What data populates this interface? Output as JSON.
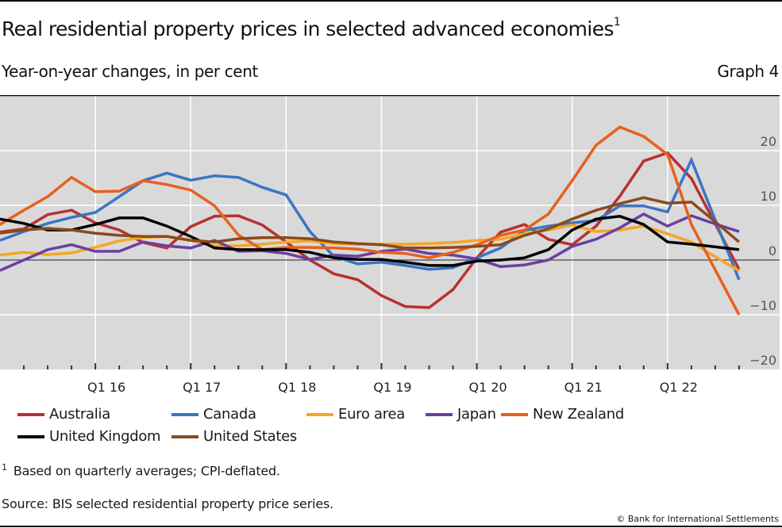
{
  "header": {
    "title": "Real residential property prices in selected advanced economies",
    "title_footnote_marker": "1",
    "subtitle": "Year-on-year changes, in per cent",
    "graph_number": "Graph 4"
  },
  "footer": {
    "footnote_marker": "1",
    "footnote": "Based on quarterly averages; CPI-deflated.",
    "source": "Source: BIS selected residential property price series.",
    "copyright": "© Bank for International Settlements"
  },
  "chart_data": {
    "type": "line",
    "title": "Real residential property prices in selected advanced economies",
    "subtitle": "Year-on-year changes, in per cent",
    "xlabel": "",
    "ylabel": "",
    "x": [
      "Q1 15",
      "Q2 15",
      "Q3 15",
      "Q4 15",
      "Q1 16",
      "Q2 16",
      "Q3 16",
      "Q4 16",
      "Q1 17",
      "Q2 17",
      "Q3 17",
      "Q4 17",
      "Q1 18",
      "Q2 18",
      "Q3 18",
      "Q4 18",
      "Q1 19",
      "Q2 19",
      "Q3 19",
      "Q4 19",
      "Q1 20",
      "Q2 20",
      "Q3 20",
      "Q4 20",
      "Q1 21",
      "Q2 21",
      "Q3 21",
      "Q4 21",
      "Q1 22",
      "Q2 22",
      "Q3 22",
      "Q4 22"
    ],
    "x_tick_labels": [
      "Q1 16",
      "Q1 17",
      "Q1 18",
      "Q1 19",
      "Q1 20",
      "Q1 21",
      "Q1 22"
    ],
    "y_ticks": [
      20,
      10,
      0,
      -10,
      -20
    ],
    "y_tick_labels": [
      "20",
      "10",
      "0",
      "−10",
      "−20"
    ],
    "ylim": [
      -20,
      29
    ],
    "y_axis_position": "right",
    "grid": true,
    "background": "#d9d9d9",
    "legend_position": "bottom",
    "series": [
      {
        "name": "Australia",
        "color": "#b8312f",
        "values": [
          5.1,
          5.7,
          8.3,
          9.1,
          6.8,
          5.5,
          3.2,
          2.2,
          6.1,
          8.0,
          8.1,
          6.4,
          3.3,
          0.0,
          -2.5,
          -3.6,
          -6.5,
          -8.5,
          -8.7,
          -5.4,
          0.4,
          5.1,
          6.5,
          3.8,
          2.8,
          6.2,
          11.7,
          18.1,
          19.6,
          14.9,
          6.6,
          -1.7
        ]
      },
      {
        "name": "Canada",
        "color": "#3a75c4",
        "values": [
          3.6,
          5.2,
          6.7,
          7.8,
          8.7,
          11.6,
          14.5,
          15.9,
          14.6,
          15.4,
          15.1,
          13.3,
          11.9,
          5.2,
          0.7,
          -0.7,
          -0.4,
          -1.0,
          -1.7,
          -1.4,
          0.4,
          2.2,
          5.4,
          6.2,
          6.8,
          7.2,
          9.9,
          9.9,
          8.8,
          18.3,
          7.3,
          -3.6
        ]
      },
      {
        "name": "Euro area",
        "color": "#f5a623",
        "values": [
          0.9,
          1.4,
          1.0,
          1.3,
          2.3,
          3.5,
          4.1,
          4.3,
          3.6,
          2.6,
          2.6,
          2.9,
          3.3,
          3.5,
          3.0,
          2.9,
          2.9,
          2.9,
          3.0,
          3.2,
          3.6,
          3.8,
          4.8,
          5.5,
          6.4,
          5.2,
          5.5,
          6.2,
          4.8,
          3.3,
          0.6,
          -2.0
        ]
      },
      {
        "name": "Japan",
        "color": "#6b3fa0",
        "values": [
          -1.9,
          0.0,
          1.9,
          2.8,
          1.6,
          1.6,
          3.3,
          2.6,
          2.2,
          3.6,
          1.6,
          1.7,
          1.2,
          0.1,
          0.9,
          0.7,
          1.6,
          2.0,
          1.2,
          0.9,
          0.2,
          -1.2,
          -0.9,
          0.0,
          2.5,
          3.8,
          5.9,
          8.4,
          6.2,
          8.1,
          6.6,
          5.2
        ]
      },
      {
        "name": "New Zealand",
        "color": "#e8601c",
        "values": [
          6.5,
          9.1,
          11.6,
          15.1,
          12.5,
          12.6,
          14.5,
          13.8,
          12.8,
          9.9,
          4.6,
          1.9,
          2.3,
          2.3,
          2.2,
          2.0,
          1.4,
          1.2,
          0.4,
          1.4,
          2.8,
          4.5,
          5.5,
          8.4,
          14.5,
          21.0,
          24.3,
          22.6,
          19.3,
          6.5,
          -1.8,
          -10.0
        ]
      },
      {
        "name": "United Kingdom",
        "color": "#000000",
        "values": [
          7.5,
          6.7,
          5.5,
          5.5,
          6.5,
          7.7,
          7.7,
          6.2,
          4.3,
          2.2,
          1.9,
          1.9,
          1.9,
          1.4,
          0.4,
          0.1,
          0.1,
          -0.4,
          -1.0,
          -1.0,
          -0.2,
          0.0,
          0.4,
          1.9,
          5.5,
          7.5,
          8.0,
          6.5,
          3.3,
          2.9,
          2.4,
          1.9
        ]
      },
      {
        "name": "United States",
        "color": "#8b4a1c",
        "values": [
          4.9,
          5.5,
          5.8,
          5.5,
          4.9,
          4.5,
          4.3,
          4.3,
          3.6,
          3.3,
          3.9,
          4.1,
          4.1,
          3.9,
          3.3,
          3.0,
          2.8,
          2.2,
          2.2,
          2.3,
          2.5,
          2.8,
          4.5,
          5.7,
          7.5,
          9.1,
          10.3,
          11.4,
          10.4,
          10.6,
          7.0,
          3.3
        ]
      }
    ]
  }
}
